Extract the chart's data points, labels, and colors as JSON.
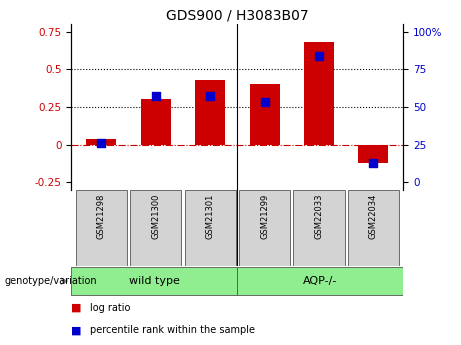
{
  "title": "GDS900 / H3083B07",
  "samples": [
    "GSM21298",
    "GSM21300",
    "GSM21301",
    "GSM21299",
    "GSM22033",
    "GSM22034"
  ],
  "log_ratio": [
    0.04,
    0.3,
    0.43,
    0.4,
    0.68,
    -0.12
  ],
  "percentile_rank": [
    0.26,
    0.57,
    0.57,
    0.53,
    0.84,
    0.13
  ],
  "bar_color": "#cc0000",
  "dot_color": "#0000cc",
  "ylim_left": [
    -0.3,
    0.8
  ],
  "ylim_right": [
    -7.5,
    106.67
  ],
  "yticks_left": [
    -0.25,
    0.0,
    0.25,
    0.5,
    0.75
  ],
  "yticks_right": [
    0,
    25,
    50,
    75,
    100
  ],
  "ytick_labels_left": [
    "-0.25",
    "0",
    "0.25",
    "0.5",
    "0.75"
  ],
  "ytick_labels_right": [
    "0",
    "25",
    "50",
    "75",
    "100%"
  ],
  "hline_dash_y": 0.0,
  "hline_dot1_y": 0.25,
  "hline_dot2_y": 0.5,
  "group1_label": "wild type",
  "group2_label": "AQP-/-",
  "group_color": "#90ee90",
  "xlabel_label": "genotype/variation",
  "legend_log_ratio": "log ratio",
  "legend_percentile": "percentile rank within the sample",
  "bar_color_red": "#cc0000",
  "dot_color_blue": "#0000cc",
  "title_fontsize": 10,
  "tick_fontsize": 7.5,
  "label_fontsize": 8,
  "sep_x": 2.5,
  "xlim": [
    -0.55,
    5.55
  ],
  "bar_width": 0.55
}
